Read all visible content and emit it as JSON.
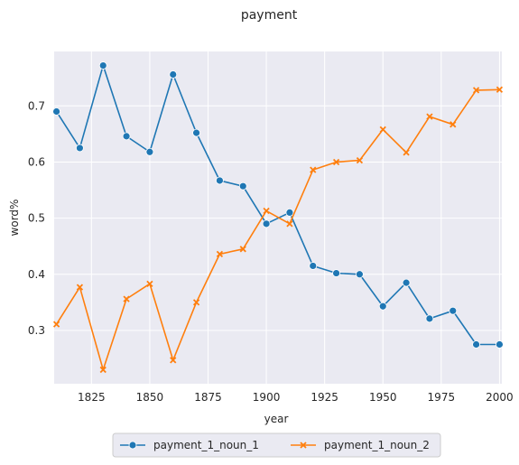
{
  "chart_data": {
    "type": "line",
    "title": "payment",
    "xlabel": "year",
    "ylabel": "word%",
    "xlim": [
      1809,
      2001
    ],
    "ylim": [
      0.205,
      0.797
    ],
    "xticks": [
      1825,
      1850,
      1875,
      1900,
      1925,
      1950,
      1975,
      2000
    ],
    "yticks": [
      0.3,
      0.4,
      0.5,
      0.6,
      0.7
    ],
    "x": [
      1810,
      1820,
      1830,
      1840,
      1850,
      1860,
      1870,
      1880,
      1890,
      1900,
      1910,
      1920,
      1930,
      1940,
      1950,
      1960,
      1970,
      1980,
      1990,
      2000
    ],
    "series": [
      {
        "name": "payment_1_noun_1",
        "color": "#1f77b4",
        "marker": "circle",
        "values": [
          0.69,
          0.625,
          0.772,
          0.646,
          0.618,
          0.756,
          0.652,
          0.567,
          0.557,
          0.49,
          0.51,
          0.415,
          0.402,
          0.4,
          0.343,
          0.385,
          0.321,
          0.335,
          0.275,
          0.275
        ]
      },
      {
        "name": "payment_1_noun_2",
        "color": "#ff7f0e",
        "marker": "x",
        "values": [
          0.311,
          0.377,
          0.23,
          0.356,
          0.383,
          0.247,
          0.35,
          0.436,
          0.445,
          0.513,
          0.49,
          0.586,
          0.6,
          0.603,
          0.658,
          0.617,
          0.681,
          0.667,
          0.728,
          0.729
        ]
      }
    ],
    "legend_position": "bottom-center",
    "grid": true
  }
}
